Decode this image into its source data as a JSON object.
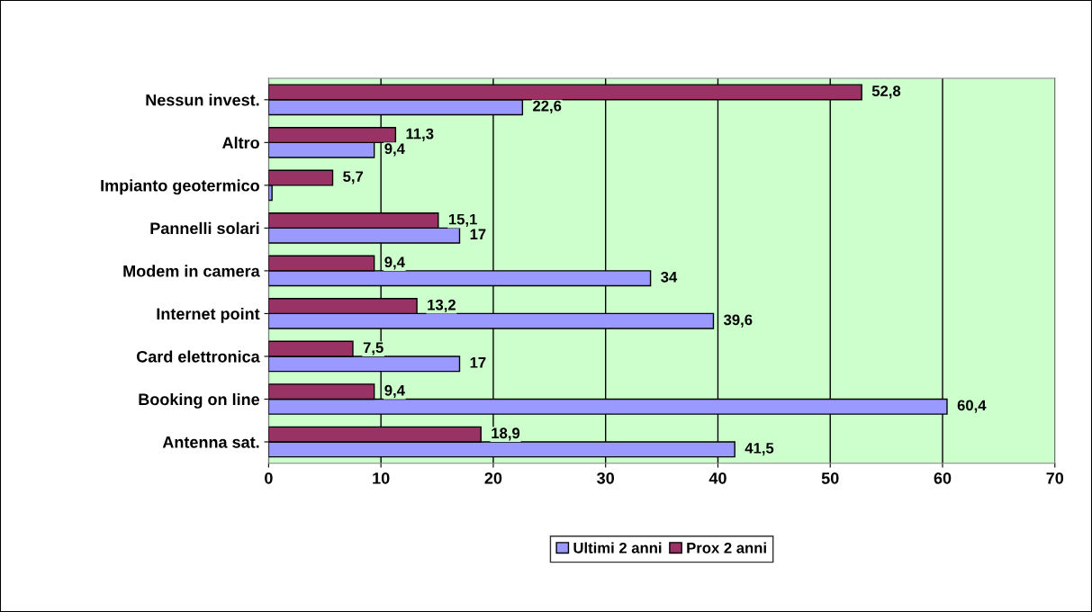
{
  "chart_data": {
    "type": "bar",
    "orientation": "horizontal",
    "categories": [
      "Nessun invest.",
      "Altro",
      "Impianto geotermico",
      "Pannelli solari",
      "Modem in camera",
      "Internet point",
      "Card elettronica",
      "Booking on line",
      "Antenna sat."
    ],
    "series": [
      {
        "name": "Ultimi 2 anni",
        "color": "#9999ff",
        "values": [
          22.6,
          9.4,
          0.3,
          17,
          34,
          39.6,
          17,
          60.4,
          41.5
        ],
        "value_labels": [
          "22,6",
          "9,4",
          null,
          "17",
          "34",
          "39,6",
          "17",
          "60,4",
          "41,5"
        ]
      },
      {
        "name": "Prox 2 anni",
        "color": "#993366",
        "values": [
          52.8,
          11.3,
          5.7,
          15.1,
          9.4,
          13.2,
          7.5,
          9.4,
          18.9
        ],
        "value_labels": [
          "52,8",
          "11,3",
          "5,7",
          "15,1",
          "9,4",
          "13,2",
          "7,5",
          "9,4",
          "18,9"
        ]
      }
    ],
    "xlim": [
      0,
      70
    ],
    "xticks": [
      0,
      10,
      20,
      30,
      40,
      50,
      60,
      70
    ],
    "grid": "x",
    "legend": "bottom"
  }
}
